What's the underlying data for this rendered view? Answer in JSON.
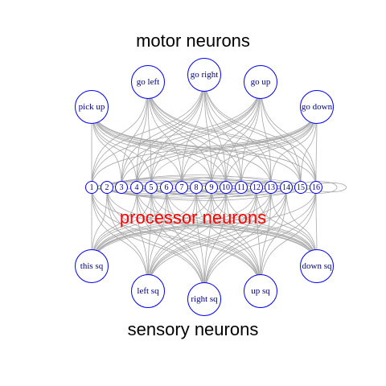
{
  "labels": {
    "motor_title": "motor neurons",
    "sensory_title": "sensory neurons",
    "processor_title": "processor neurons"
  },
  "colors": {
    "node_border": "#0000ff",
    "node_text": "#000080",
    "edge": "#a8a8a8",
    "processor_title": "#ff0000"
  },
  "motor_neurons": [
    "pick up",
    "go left",
    "go right",
    "go up",
    "go down"
  ],
  "sensory_neurons": [
    "this sq",
    "left sq",
    "right sq",
    "up sq",
    "down sq"
  ],
  "processor_neurons": [
    "1",
    "2",
    "3",
    "4",
    "5",
    "6",
    "7",
    "8",
    "9",
    "10",
    "11",
    "12",
    "13",
    "14",
    "15",
    "16"
  ]
}
